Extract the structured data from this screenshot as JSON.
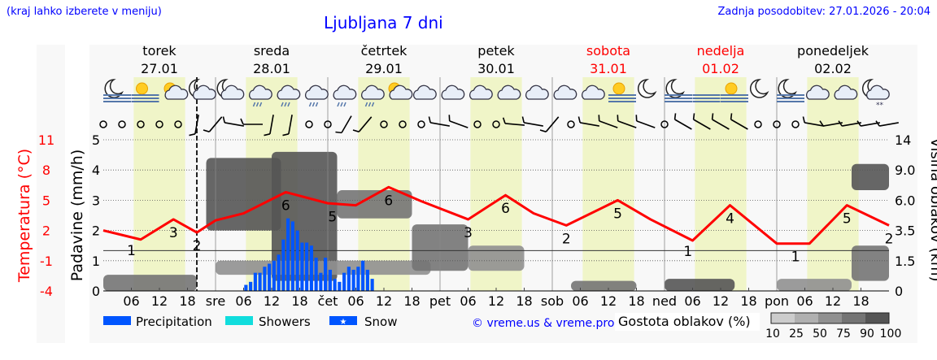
{
  "header": {
    "menu_hint": "(kraj lahko izberete v meniju)",
    "title": "Ljubljana 7 dni",
    "last_update": "Zadnja posodobitev: 27.01.2026 - 20:04"
  },
  "days": [
    {
      "name": "torek",
      "date": "27.01",
      "abbr": "",
      "weekend": false
    },
    {
      "name": "sreda",
      "date": "28.01",
      "abbr": "sre",
      "weekend": false
    },
    {
      "name": "četrtek",
      "date": "29.01",
      "abbr": "čet",
      "weekend": false
    },
    {
      "name": "petek",
      "date": "30.01",
      "abbr": "pet",
      "weekend": false
    },
    {
      "name": "sobota",
      "date": "31.01",
      "abbr": "sob",
      "weekend": true
    },
    {
      "name": "nedelja",
      "date": "01.02",
      "abbr": "ned",
      "weekend": true
    },
    {
      "name": "ponedeljek",
      "date": "02.02",
      "abbr": "pon",
      "weekend": false
    }
  ],
  "hour_ticks": [
    "06",
    "12",
    "18"
  ],
  "colors": {
    "temperature": "#ff0000",
    "precipitation": "#0055ff",
    "showers": "#11dddd",
    "snow": "#0055ff",
    "daylight": "#f0f5c8",
    "night": "#f8f8f8",
    "title": "#0000ff",
    "weekend": "#ff0000"
  },
  "weather_icons": [
    "moon-fog",
    "sun-fog",
    "sun-cloud",
    "moon-cloud",
    "moon-cloud",
    "cloud-rain",
    "cloud-rain",
    "cloud-rain",
    "cloud-rain",
    "cloud-rain",
    "sun-cloud",
    "cloud",
    "cloud",
    "cloud",
    "cloud",
    "cloud",
    "cloud",
    "cloud",
    "sun-fog",
    "moon",
    "moon-fog",
    "fog",
    "sun-fog",
    "moon",
    "moon-fog",
    "cloud",
    "cloud",
    "moon-snow"
  ],
  "wind": [
    "calm",
    "calm",
    "calm",
    "calm",
    "calm",
    "barb:10",
    "barb:40",
    "barb:100",
    "barb:90",
    "barb:10",
    "barb:10",
    "calm",
    "calm",
    "barb:30",
    "barb:40",
    "calm",
    "calm",
    "calm",
    "barb:100",
    "barb:110",
    "calm",
    "calm",
    "barb:95",
    "barb:100",
    "barb:40",
    "calm",
    "barb:100",
    "barb:110",
    "barb:110",
    "barb:110",
    "calm",
    "barb:120",
    "barb:120",
    "barb:120",
    "barb:120",
    "calm",
    "calm",
    "calm",
    "barb:100",
    "barb:80",
    "barb:80",
    "barb:80",
    "barb:80"
  ],
  "chart_data": {
    "type": "line",
    "left_axis_title": "Temperatura (°C)",
    "precip_axis_title": "Padavine (mm/h)",
    "right_axis_title": "Višina oblakov (km)",
    "temperature_ticks": [
      "11",
      "8",
      "5",
      "2",
      "-1",
      "-4"
    ],
    "temperature_range": [
      -4,
      11
    ],
    "precip_ticks": [
      "5",
      "4",
      "3",
      "2",
      "1",
      "0"
    ],
    "precip_range": [
      0,
      5
    ],
    "cloud_height_ticks": [
      "14",
      "9.0",
      "6.0",
      "3.5",
      "1.5",
      "0"
    ],
    "cloud_height_values": [
      14,
      9.0,
      6.0,
      3.5,
      1.5,
      0
    ],
    "grid": "dotted horizontal",
    "daylight_hours": [
      6.5,
      17.5
    ],
    "now": "27.01 20",
    "freezing_line": 0,
    "temperature": [
      {
        "t": "27.01 00",
        "v": 2.0
      },
      {
        "t": "27.01 08",
        "v": 1.1
      },
      {
        "t": "27.01 15",
        "v": 3.1
      },
      {
        "t": "27.01 20",
        "v": 1.8
      },
      {
        "t": "28.01 00",
        "v": 3.0
      },
      {
        "t": "28.01 06",
        "v": 3.7
      },
      {
        "t": "28.01 15",
        "v": 5.8
      },
      {
        "t": "29.01 00",
        "v": 4.7
      },
      {
        "t": "29.01 06",
        "v": 4.5
      },
      {
        "t": "29.01 13",
        "v": 6.3
      },
      {
        "t": "29.01 20",
        "v": 4.9
      },
      {
        "t": "30.01 06",
        "v": 3.1
      },
      {
        "t": "30.01 14",
        "v": 5.5
      },
      {
        "t": "30.01 20",
        "v": 3.7
      },
      {
        "t": "31.01 03",
        "v": 2.5
      },
      {
        "t": "31.01 14",
        "v": 5.0
      },
      {
        "t": "31.01 21",
        "v": 3.1
      },
      {
        "t": "01.02 06",
        "v": 1.0
      },
      {
        "t": "01.02 14",
        "v": 4.5
      },
      {
        "t": "02.02 00",
        "v": 0.7
      },
      {
        "t": "02.02 07",
        "v": 0.7
      },
      {
        "t": "02.02 15",
        "v": 4.5
      },
      {
        "t": "02.02 24",
        "v": 2.5
      }
    ],
    "temperature_labels": [
      {
        "t": "27.01 06",
        "label": "1",
        "pos": "below"
      },
      {
        "t": "27.01 15",
        "label": "3",
        "pos": "below"
      },
      {
        "t": "27.01 20",
        "label": "2",
        "pos": "below"
      },
      {
        "t": "28.01 15",
        "label": "6",
        "pos": "below"
      },
      {
        "t": "29.01 01",
        "label": "5",
        "pos": "below"
      },
      {
        "t": "29.01 13",
        "label": "6",
        "pos": "below"
      },
      {
        "t": "30.01 06",
        "label": "3",
        "pos": "below"
      },
      {
        "t": "30.01 14",
        "label": "6",
        "pos": "below"
      },
      {
        "t": "31.01 03",
        "label": "2",
        "pos": "below"
      },
      {
        "t": "31.01 14",
        "label": "5",
        "pos": "below"
      },
      {
        "t": "01.02 05",
        "label": "1",
        "pos": "below"
      },
      {
        "t": "01.02 14",
        "label": "4",
        "pos": "below"
      },
      {
        "t": "02.02 04",
        "label": "1",
        "pos": "below"
      },
      {
        "t": "02.02 15",
        "label": "5",
        "pos": "below"
      },
      {
        "t": "02.02 24",
        "label": "2",
        "pos": "below"
      }
    ],
    "precipitation": {
      "start": "28.01 06",
      "step_hours": 1,
      "values": [
        0.2,
        0.3,
        0.6,
        0.6,
        0.8,
        0.9,
        1.0,
        1.2,
        1.7,
        2.4,
        2.3,
        2.0,
        1.6,
        1.6,
        1.5,
        1.1,
        0.6,
        1.1,
        0.7,
        0.4,
        0.3,
        0.6,
        0.8,
        0.7,
        0.8,
        1.0,
        0.7,
        0.4
      ]
    },
    "cloud_density": [
      {
        "from": "27.01 00",
        "to": "27.01 20",
        "km": [
          0,
          0.8
        ],
        "pct": 75
      },
      {
        "from": "27.01 22",
        "to": "28.01 14",
        "km": [
          3.5,
          11
        ],
        "pct": 90
      },
      {
        "from": "28.01 12",
        "to": "29.01 02",
        "km": [
          0.5,
          12
        ],
        "pct": 90
      },
      {
        "from": "28.01 00",
        "to": "29.01 22",
        "km": [
          0.8,
          1.5
        ],
        "pct": 50
      },
      {
        "from": "29.01 02",
        "to": "29.01 18",
        "km": [
          4.5,
          7
        ],
        "pct": 75
      },
      {
        "from": "29.01 18",
        "to": "30.01 06",
        "km": [
          1,
          4
        ],
        "pct": 75
      },
      {
        "from": "30.01 06",
        "to": "30.01 18",
        "km": [
          1,
          2.5
        ],
        "pct": 50
      },
      {
        "from": "31.01 04",
        "to": "31.01 18",
        "km": [
          0,
          0.5
        ],
        "pct": 75
      },
      {
        "from": "01.02 00",
        "to": "01.02 15",
        "km": [
          0,
          0.6
        ],
        "pct": 90
      },
      {
        "from": "02.02 00",
        "to": "02.02 16",
        "km": [
          0,
          0.6
        ],
        "pct": 50
      },
      {
        "from": "02.02 16",
        "to": "02.02 24",
        "km": [
          7,
          10
        ],
        "pct": 90
      },
      {
        "from": "02.02 16",
        "to": "02.02 24",
        "km": [
          0.5,
          2.5
        ],
        "pct": 75
      }
    ]
  },
  "legend": {
    "precipitation": "Precipitation",
    "showers": "Showers",
    "snow": "Snow",
    "copyright": "© vreme.us & vreme.pro",
    "cloud_density_title": "Gostota oblakov (%)",
    "density_levels": [
      "10",
      "25",
      "50",
      "75",
      "90",
      "100"
    ],
    "density_colors": [
      "#cccccc",
      "#b0b0b0",
      "#909090",
      "#747474",
      "#555555"
    ]
  }
}
